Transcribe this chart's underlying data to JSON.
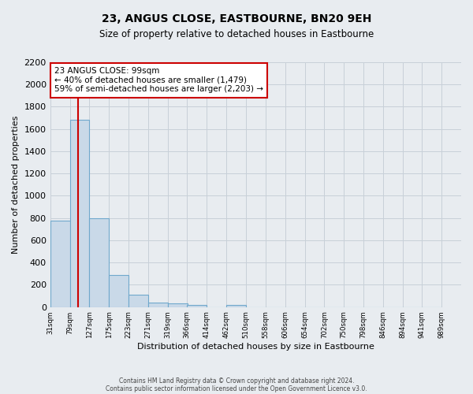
{
  "title": "23, ANGUS CLOSE, EASTBOURNE, BN20 9EH",
  "subtitle": "Size of property relative to detached houses in Eastbourne",
  "xlabel": "Distribution of detached houses by size in Eastbourne",
  "ylabel": "Number of detached properties",
  "bar_left_edges": [
    31,
    79,
    127,
    175,
    223,
    271,
    319,
    366,
    414,
    462,
    510,
    558,
    606,
    654,
    702,
    750,
    798,
    846,
    894,
    941
  ],
  "bar_heights": [
    780,
    1680,
    800,
    290,
    110,
    40,
    30,
    20,
    0,
    20,
    0,
    0,
    0,
    0,
    0,
    0,
    0,
    0,
    0,
    0
  ],
  "bin_width": 48,
  "bar_color": "#c9d9e8",
  "bar_edge_color": "#6fa8cc",
  "property_size": 99,
  "annotation_line1": "23 ANGUS CLOSE: 99sqm",
  "annotation_line2": "← 40% of detached houses are smaller (1,479)",
  "annotation_line3": "59% of semi-detached houses are larger (2,203) →",
  "annotation_box_color": "#ffffff",
  "annotation_box_edge_color": "#cc0000",
  "vline_x": 99,
  "vline_color": "#cc0000",
  "tick_labels": [
    "31sqm",
    "79sqm",
    "127sqm",
    "175sqm",
    "223sqm",
    "271sqm",
    "319sqm",
    "366sqm",
    "414sqm",
    "462sqm",
    "510sqm",
    "558sqm",
    "606sqm",
    "654sqm",
    "702sqm",
    "750sqm",
    "798sqm",
    "846sqm",
    "894sqm",
    "941sqm",
    "989sqm"
  ],
  "ylim": [
    0,
    2200
  ],
  "yticks": [
    0,
    200,
    400,
    600,
    800,
    1000,
    1200,
    1400,
    1600,
    1800,
    2000,
    2200
  ],
  "grid_color": "#c8d0d8",
  "background_color": "#e8ecf0",
  "footer_line1": "Contains HM Land Registry data © Crown copyright and database right 2024.",
  "footer_line2": "Contains public sector information licensed under the Open Government Licence v3.0."
}
